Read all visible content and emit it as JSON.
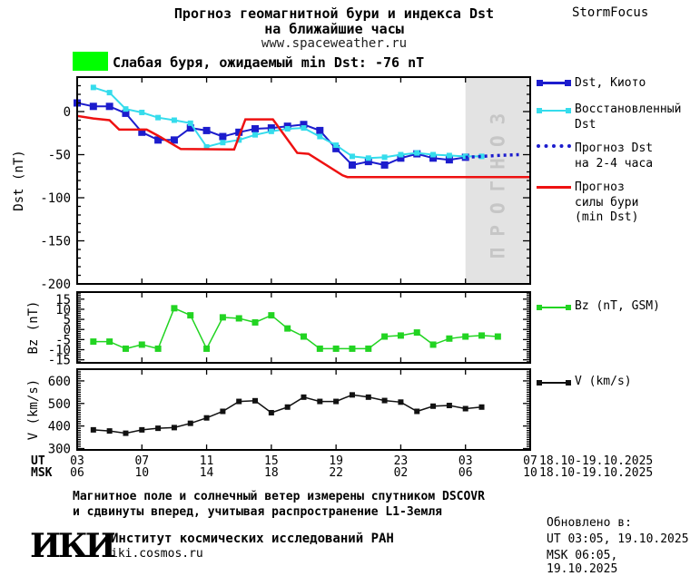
{
  "header": {
    "title_line1": "Прогноз геомагнитной бури и индекса Dst",
    "title_line2": "на ближайшие часы",
    "url": "www.spaceweather.ru",
    "brand": "StormFocus"
  },
  "storm_banner": {
    "level_color": "#00ff00",
    "text": "Слабая буря, ожидаемый min Dst: -76 nT"
  },
  "legend": {
    "kyoto": "Dst, Киото",
    "restored_line1": "Восстановленный",
    "restored_line2": "Dst",
    "forecast_line1": "Прогноз Dst",
    "forecast_line2": "на 2-4 часа",
    "storm_line1": "Прогноз",
    "storm_line2": "силы бури",
    "storm_line3": "(min Dst)",
    "bz": "Bz (nT, GSM)",
    "v": "V (km/s)"
  },
  "chart_data": [
    {
      "type": "line",
      "panel": "dst",
      "ylabel": "Dst (nT)",
      "ylim": [
        -200,
        40
      ],
      "yticks": [
        0,
        -50,
        -100,
        -150,
        -200
      ],
      "y_minor_step": 10,
      "forecast_region": {
        "start_hour": 27,
        "end_hour": 31,
        "label": "ПРОГНОЗ",
        "fill": "#e3e3e3",
        "text_color": "#c6c6c6"
      },
      "series": [
        {
          "name": "Dst, Киото",
          "color": "#1c1ccd",
          "width": 2,
          "marker": 8,
          "points": [
            [
              3,
              10
            ],
            [
              4,
              6
            ],
            [
              5,
              6
            ],
            [
              6,
              -2
            ],
            [
              7,
              -24
            ],
            [
              8,
              -33
            ],
            [
              9,
              -33
            ],
            [
              10,
              -19
            ],
            [
              11,
              -22
            ],
            [
              12,
              -29
            ],
            [
              13,
              -24
            ],
            [
              14,
              -20
            ],
            [
              15,
              -19
            ],
            [
              16,
              -17
            ],
            [
              17,
              -15
            ],
            [
              18,
              -22
            ],
            [
              19,
              -43
            ],
            [
              20,
              -62
            ],
            [
              21,
              -58
            ],
            [
              22,
              -62
            ],
            [
              23,
              -54
            ],
            [
              24,
              -49
            ],
            [
              25,
              -54
            ],
            [
              26,
              -56
            ],
            [
              27,
              -53
            ]
          ]
        },
        {
          "name": "Восстановленный Dst",
          "color": "#35dcec",
          "width": 2,
          "marker": 6,
          "points": [
            [
              4,
              28
            ],
            [
              5,
              22
            ],
            [
              6,
              3
            ],
            [
              7,
              -1
            ],
            [
              8,
              -7
            ],
            [
              9,
              -10
            ],
            [
              10,
              -13.5
            ],
            [
              11,
              -41
            ],
            [
              12,
              -36
            ],
            [
              13,
              -33
            ],
            [
              14,
              -27
            ],
            [
              15,
              -23
            ],
            [
              16,
              -20
            ],
            [
              17,
              -19
            ],
            [
              18,
              -29
            ],
            [
              19,
              -39
            ],
            [
              20,
              -52
            ],
            [
              21,
              -54
            ],
            [
              22,
              -53
            ],
            [
              23,
              -50
            ],
            [
              24,
              -48
            ],
            [
              25,
              -50
            ],
            [
              26,
              -51
            ],
            [
              27,
              -52
            ],
            [
              28,
              -52
            ]
          ]
        },
        {
          "name": "Прогноз Dst на 2-4 часа",
          "color": "#1c1ccd",
          "width": 3.5,
          "dotted": true,
          "points": [
            [
              27,
              -53
            ],
            [
              28,
              -52
            ],
            [
              29,
              -51
            ],
            [
              30.3,
              -50
            ]
          ]
        },
        {
          "name": "Прогноз силы бури (min Dst)",
          "color": "#ee1111",
          "width": 2.5,
          "points": [
            [
              3,
              -5
            ],
            [
              4,
              -8
            ],
            [
              5,
              -10
            ],
            [
              5.6,
              -21
            ],
            [
              7.3,
              -21
            ],
            [
              8,
              -28
            ],
            [
              9.4,
              -43.5
            ],
            [
              12.7,
              -44
            ],
            [
              13.4,
              -9
            ],
            [
              15.1,
              -9
            ],
            [
              16.6,
              -48
            ],
            [
              17.3,
              -49
            ],
            [
              19.4,
              -74
            ],
            [
              19.7,
              -76
            ],
            [
              31,
              -76
            ]
          ]
        }
      ]
    },
    {
      "type": "line",
      "panel": "bz",
      "ylabel": "Bz (nT)",
      "ylim": [
        -16.5,
        18.5
      ],
      "yticks": [
        15,
        10,
        5,
        0,
        -5,
        -10,
        -15
      ],
      "y_minor_step": 1,
      "series": [
        {
          "name": "Bz (nT, GSM)",
          "color": "#22d422",
          "width": 1.5,
          "marker": 7,
          "points": [
            [
              4,
              -6
            ],
            [
              5,
              -6
            ],
            [
              6,
              -9.5
            ],
            [
              7,
              -7.5
            ],
            [
              8,
              -9.5
            ],
            [
              9,
              10.5
            ],
            [
              10,
              7
            ],
            [
              11,
              -9.5
            ],
            [
              12,
              6
            ],
            [
              13,
              5.5
            ],
            [
              14,
              3.5
            ],
            [
              15,
              7
            ],
            [
              16,
              0.5
            ],
            [
              17,
              -3.5
            ],
            [
              18,
              -9.5
            ],
            [
              19,
              -9.5
            ],
            [
              20,
              -9.5
            ],
            [
              21,
              -9.5
            ],
            [
              22,
              -3.5
            ],
            [
              23,
              -3
            ],
            [
              24,
              -1.5
            ],
            [
              25,
              -7.5
            ],
            [
              26,
              -4.5
            ],
            [
              27,
              -3.5
            ],
            [
              28,
              -3
            ],
            [
              29,
              -3.5
            ]
          ]
        }
      ]
    },
    {
      "type": "line",
      "panel": "v",
      "ylabel": "V (km/s)",
      "ylim": [
        294,
        652
      ],
      "yticks": [
        600,
        500,
        400,
        300
      ],
      "y_minor_step": 10,
      "series": [
        {
          "name": "V (km/s)",
          "color": "#111111",
          "width": 1.5,
          "marker": 6,
          "points": [
            [
              4,
              383
            ],
            [
              5,
              378
            ],
            [
              6,
              368
            ],
            [
              7,
              383
            ],
            [
              8,
              390
            ],
            [
              9,
              393
            ],
            [
              10,
              412
            ],
            [
              11,
              436
            ],
            [
              12,
              465
            ],
            [
              13,
              509
            ],
            [
              14,
              512
            ],
            [
              15,
              459
            ],
            [
              16,
              484
            ],
            [
              17,
              528
            ],
            [
              18,
              509
            ],
            [
              19,
              509
            ],
            [
              20,
              538
            ],
            [
              21,
              528
            ],
            [
              22,
              513
            ],
            [
              23,
              506
            ],
            [
              24,
              465
            ],
            [
              25,
              488
            ],
            [
              26,
              491
            ],
            [
              27,
              477
            ],
            [
              28,
              484
            ]
          ]
        }
      ]
    }
  ],
  "xaxis": {
    "tick_hours": [
      3,
      7,
      11,
      15,
      19,
      23,
      27,
      31
    ],
    "ut": {
      "label": "UT",
      "ticks": [
        "03",
        "07",
        "11",
        "15",
        "19",
        "23",
        "03",
        "07"
      ],
      "date": "18.10-19.10.2025"
    },
    "msk": {
      "label": "MSK",
      "ticks": [
        "06",
        "10",
        "14",
        "18",
        "22",
        "02",
        "06",
        "10"
      ],
      "date": "18.10-19.10.2025"
    }
  },
  "footer": {
    "note_line1": "Магнитное поле и солнечный ветер измерены спутником DSCOVR",
    "note_line2": "и сдвинуты вперед, учитывая распространение L1-Земля",
    "logo": "ИКИ",
    "org": "Институт космических исследований РАН",
    "site": "iki.cosmos.ru"
  },
  "updated": {
    "title": "Обновлено в:",
    "ut": "UT  03:05, 19.10.2025",
    "msk": "MSK 06:05, 19.10.2025"
  }
}
